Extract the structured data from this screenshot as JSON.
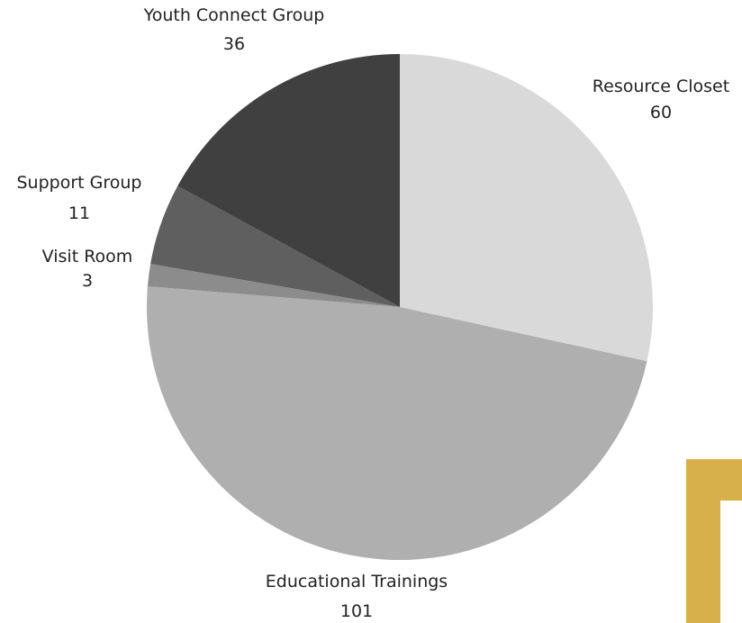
{
  "chart_data": {
    "type": "pie",
    "start_angle_deg": 0,
    "direction": "clockwise",
    "slices": [
      {
        "label": "Resource Closet",
        "value": 60,
        "color": "#d9d9d9"
      },
      {
        "label": "Educational Trainings",
        "value": 101,
        "color": "#afafaf"
      },
      {
        "label": "Visit Room",
        "value": 3,
        "color": "#8c8c8c"
      },
      {
        "label": "Support Group",
        "value": 11,
        "color": "#5f5f5f"
      },
      {
        "label": "Youth Connect Group",
        "value": 36,
        "color": "#404040"
      }
    ]
  },
  "decor": {
    "accent_color": "#d7b04a"
  }
}
